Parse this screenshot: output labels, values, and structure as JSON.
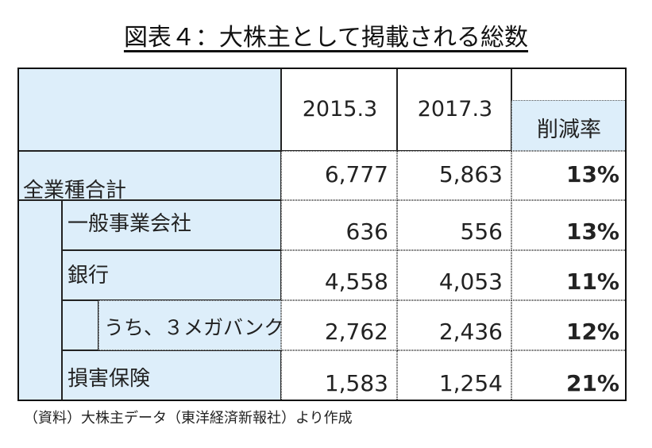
{
  "title": "図表４：大株主として掲載される総数",
  "header": {
    "col1": "2015.3",
    "col2": "2017.3",
    "col3": "削減率"
  },
  "rows": [
    {
      "label": "全業種合計",
      "v2015": "6,777",
      "v2017": "5,863",
      "rate": "13%"
    },
    {
      "label": "一般事業会社",
      "v2015": "636",
      "v2017": "556",
      "rate": "13%"
    },
    {
      "label": "銀行",
      "v2015": "4,558",
      "v2017": "4,053",
      "rate": "11%"
    },
    {
      "label": "うち、３メガバンク",
      "v2015": "2,762",
      "v2017": "2,436",
      "rate": "12%"
    },
    {
      "label": "損害保険",
      "v2015": "1,583",
      "v2017": "1,254",
      "rate": "21%"
    }
  ],
  "footnote": "（資料）大株主データ（東洋経済新報社）より作成",
  "colors": {
    "header_bg": "#ddeefa",
    "border": "#222222"
  }
}
